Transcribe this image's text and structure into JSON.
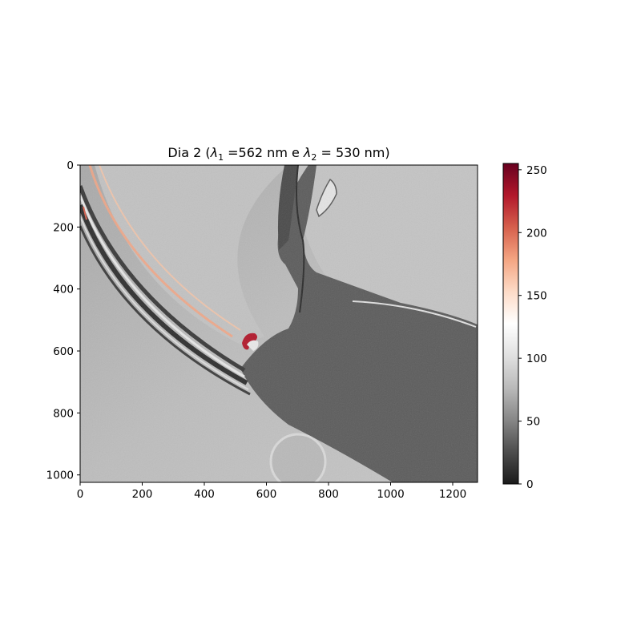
{
  "chart_data": {
    "type": "heatmap",
    "title": "Dia 2 (λ1 =562 nm e λ2 = 530 nm)",
    "title_parts": {
      "prefix": "Dia 2 (",
      "lambda": "λ",
      "sub1": "1",
      "mid": " =562 nm e ",
      "sub2": "2",
      "suffix": " = 530 nm)"
    },
    "xlabel": "",
    "ylabel": "",
    "xlim": [
      0,
      1280
    ],
    "ylim": [
      1024,
      0
    ],
    "x_ticks": [
      0,
      200,
      400,
      600,
      800,
      1000,
      1200
    ],
    "y_ticks": [
      0,
      200,
      400,
      600,
      800,
      1000
    ],
    "colorbar": {
      "range": [
        0,
        255
      ],
      "ticks": [
        0,
        50,
        100,
        150,
        200,
        250
      ],
      "colormap": [
        "#1a1a1a",
        "#4d4d4d",
        "#878787",
        "#bababa",
        "#e0e0e0",
        "#ffffff",
        "#fddbc7",
        "#f4a582",
        "#d6604d",
        "#b2182b",
        "#67001f"
      ]
    },
    "image_colors": {
      "background": "#bfbfbf",
      "dark_region": "#5a5a5a",
      "highlight": "#f4a582",
      "hot_spot": "#b2182b"
    },
    "grid": false
  }
}
